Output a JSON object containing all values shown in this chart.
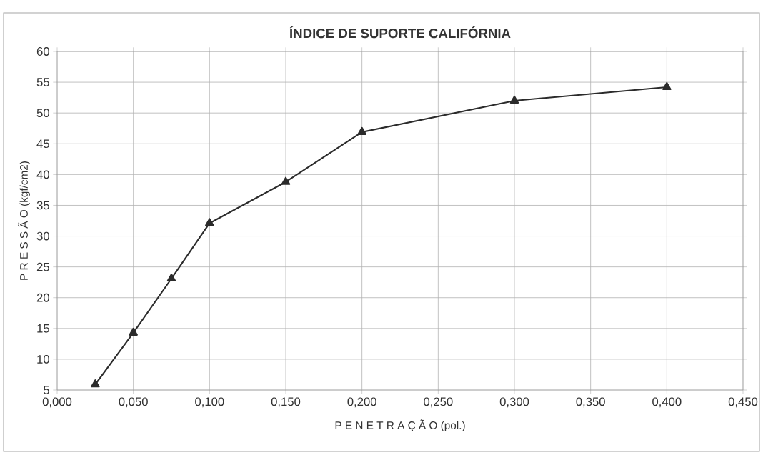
{
  "chart_data": {
    "type": "line",
    "title": "ÍNDICE DE SUPORTE CALIFÓRNIA",
    "xlabel": "P E N E T R A Ç Ã O   (pol.)",
    "ylabel": "P R E S S Ã O   (kgf/cm2)",
    "x": [
      0.025,
      0.05,
      0.075,
      0.1,
      0.15,
      0.2,
      0.3,
      0.4
    ],
    "series": [
      {
        "color": "#2b2b2b",
        "values": [
          5.9,
          14.3,
          23.1,
          32.1,
          38.8,
          46.9,
          52.0,
          54.2
        ]
      }
    ],
    "xlim": [
      0,
      0.45
    ],
    "xticks": [
      {
        "value": 0,
        "label": "0,000"
      },
      {
        "value": 0.05,
        "label": "0,050"
      },
      {
        "value": 0.1,
        "label": "0,100"
      },
      {
        "value": 0.15,
        "label": "0,150"
      },
      {
        "value": 0.2,
        "label": "0,200"
      },
      {
        "value": 0.25,
        "label": "0,250"
      },
      {
        "value": 0.3,
        "label": "0,300"
      },
      {
        "value": 0.35,
        "label": "0,350"
      },
      {
        "value": 0.4,
        "label": "0,400"
      },
      {
        "value": 0.45,
        "label": "0,450"
      }
    ],
    "ylim": [
      5,
      60
    ],
    "yticks": [
      5,
      10,
      15,
      20,
      25,
      30,
      35,
      40,
      45,
      50,
      55,
      60
    ],
    "grid": true,
    "marker": "triangle",
    "line_style": "solid"
  }
}
